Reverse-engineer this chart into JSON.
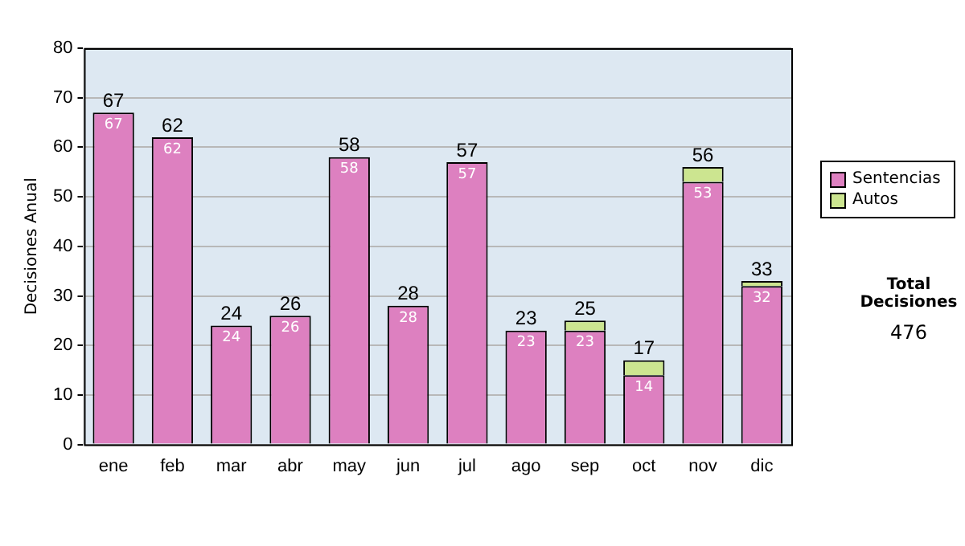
{
  "chart_data": {
    "type": "bar",
    "stacked": true,
    "ylabel": "Decisiones Anual",
    "categories": [
      "ene",
      "feb",
      "mar",
      "abr",
      "may",
      "jun",
      "jul",
      "ago",
      "sep",
      "oct",
      "nov",
      "dic"
    ],
    "series": [
      {
        "name": "Sentencias",
        "color": "#dd80c0",
        "values": [
          67,
          62,
          24,
          26,
          58,
          28,
          57,
          23,
          23,
          14,
          53,
          32
        ],
        "value_labels": [
          "67",
          "62",
          "24",
          "26",
          "58",
          "28",
          "57",
          "23",
          "23",
          "14",
          "53",
          "32"
        ]
      },
      {
        "name": "Autos",
        "color": "#cce590",
        "values": [
          0,
          0,
          0,
          0,
          0,
          0,
          0,
          0,
          2,
          3,
          3,
          1
        ]
      }
    ],
    "totals": [
      "67",
      "62",
      "24",
      "26",
      "58",
      "28",
      "57",
      "23",
      "25",
      "17",
      "56",
      "33"
    ],
    "ylim": [
      0,
      80
    ],
    "yticks": [
      0,
      10,
      20,
      30,
      40,
      50,
      60,
      70,
      80
    ],
    "grid": "y",
    "legend": "right",
    "annotations": [
      "Total Decisiones",
      "476"
    ]
  }
}
